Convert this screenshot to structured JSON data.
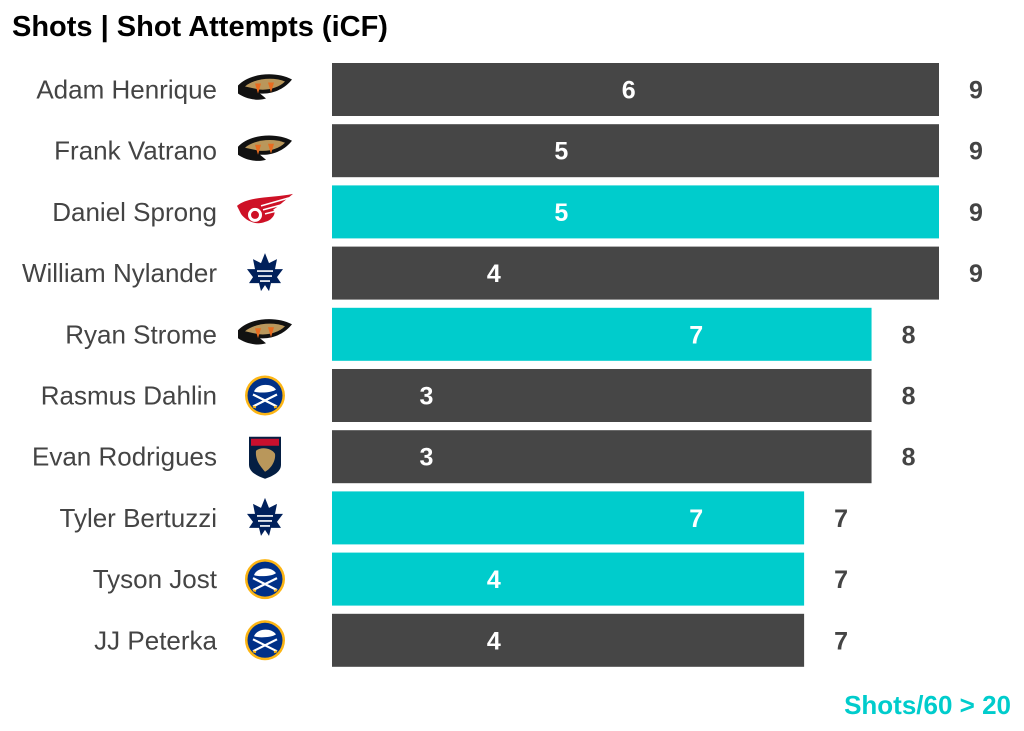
{
  "chart_data": {
    "type": "bar",
    "orientation": "horizontal",
    "title": "Shots | Shot Attempts (iCF)",
    "categories": [
      "Adam Henrique",
      "Frank Vatrano",
      "Daniel Sprong",
      "William Nylander",
      "Ryan Strome",
      "Rasmus Dahlin",
      "Evan Rodrigues",
      "Tyler Bertuzzi",
      "Tyson Jost",
      "JJ Peterka"
    ],
    "teams": [
      "anaheim-ducks",
      "anaheim-ducks",
      "detroit-red-wings",
      "toronto-maple-leafs",
      "anaheim-ducks",
      "buffalo-sabres",
      "florida-panthers",
      "toronto-maple-leafs",
      "buffalo-sabres",
      "buffalo-sabres"
    ],
    "series": [
      {
        "values": [
          9,
          9,
          9,
          9,
          8,
          8,
          8,
          7,
          7,
          7
        ]
      },
      {
        "values": [
          6,
          5,
          5,
          4,
          7,
          3,
          3,
          7,
          4,
          4
        ]
      }
    ],
    "highlighted": [
      false,
      false,
      true,
      false,
      true,
      false,
      false,
      true,
      true,
      false
    ],
    "xlim": [
      0,
      9
    ],
    "grid": false,
    "legend_note": "Shots/60 > 20",
    "legend_placement": "bottom-right",
    "colors": {
      "default_bar": "#464646",
      "highlight_bar": "#00CCCC",
      "bar_text": "#FFFFFF",
      "total_text": "#444444",
      "label_text": "#444444",
      "title_text": "#000000"
    }
  }
}
